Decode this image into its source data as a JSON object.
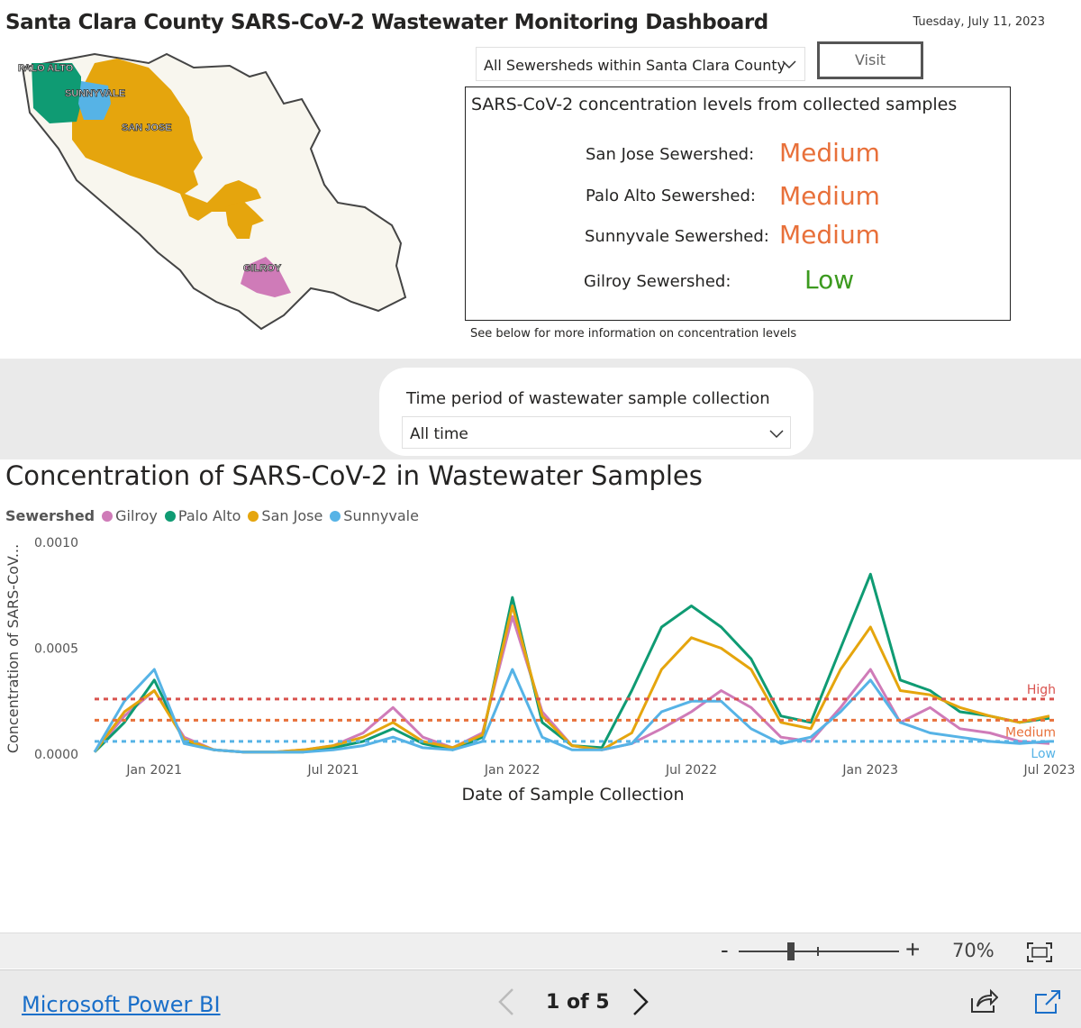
{
  "header": {
    "title": "Santa Clara County SARS-CoV-2 Wastewater Monitoring Dashboard",
    "date": "Tuesday, July 11, 2023"
  },
  "map": {
    "labels": {
      "palo_alto": "PALO ALTO",
      "sunnyvale": "SUNNYVALE",
      "san_jose": "SAN JOSE",
      "gilroy": "GILROY"
    },
    "colors": {
      "palo_alto": "#0f9b73",
      "sunnyvale": "#56b3e6",
      "san_jose": "#e5a50d",
      "gilroy": "#cf7bb8",
      "county": "#f8f6ee"
    }
  },
  "controls": {
    "sewershed_select": "All Sewersheds within Santa Clara County",
    "visit_label": "Visit"
  },
  "levels_panel": {
    "heading": "SARS-CoV-2 concentration levels from collected samples",
    "rows": [
      {
        "name": "San Jose Sewershed:",
        "level": "Medium",
        "color": "#e8703a"
      },
      {
        "name": "Palo Alto Sewershed:",
        "level": "Medium",
        "color": "#e8703a"
      },
      {
        "name": "Sunnyvale Sewershed:",
        "level": "Medium",
        "color": "#e8703a"
      },
      {
        "name": "Gilroy Sewershed:",
        "level": "Low",
        "color": "#3c9a1f"
      }
    ],
    "note": "See below for more information on concentration levels"
  },
  "time_filter": {
    "label": "Time period of wastewater sample collection",
    "value": "All time"
  },
  "chart_data": {
    "type": "line",
    "title": "Concentration of SARS-CoV-2 in Wastewater Samples",
    "legend_title": "Sewershed",
    "xlabel": "Date of Sample Collection",
    "ylabel": "Concentration of SARS-CoV...",
    "x_ticks": [
      "Jan 2021",
      "Jul 2021",
      "Jan 2022",
      "Jul 2022",
      "Jan 2023",
      "Jul 2023"
    ],
    "y_ticks": [
      "0.0000",
      "0.0005",
      "0.0010"
    ],
    "ylim": [
      0,
      0.001
    ],
    "x": [
      "2020-11",
      "2020-12",
      "2021-01",
      "2021-02",
      "2021-03",
      "2021-04",
      "2021-05",
      "2021-06",
      "2021-07",
      "2021-08",
      "2021-09",
      "2021-10",
      "2021-11",
      "2021-12",
      "2022-01",
      "2022-02",
      "2022-03",
      "2022-04",
      "2022-05",
      "2022-06",
      "2022-07",
      "2022-08",
      "2022-09",
      "2022-10",
      "2022-11",
      "2022-12",
      "2023-01",
      "2023-02",
      "2023-03",
      "2023-04",
      "2023-05",
      "2023-06",
      "2023-07"
    ],
    "series": [
      {
        "name": "Gilroy",
        "color": "#cf7bb8",
        "values": [
          1e-05,
          0.00018,
          0.0003,
          8e-05,
          2e-05,
          1e-05,
          1e-05,
          2e-05,
          4e-05,
          0.0001,
          0.00022,
          8e-05,
          3e-05,
          0.0001,
          0.00065,
          0.0002,
          4e-05,
          2e-05,
          5e-05,
          0.00012,
          0.0002,
          0.0003,
          0.00022,
          8e-05,
          6e-05,
          0.00022,
          0.0004,
          0.00015,
          0.00022,
          0.00012,
          0.0001,
          6e-05,
          5e-05
        ]
      },
      {
        "name": "Palo Alto",
        "color": "#0f9b73",
        "values": [
          1e-05,
          0.00015,
          0.00035,
          6e-05,
          2e-05,
          1e-05,
          1e-05,
          1e-05,
          3e-05,
          6e-05,
          0.00012,
          5e-05,
          2e-05,
          8e-05,
          0.00074,
          0.00015,
          4e-05,
          3e-05,
          0.0003,
          0.0006,
          0.0007,
          0.0006,
          0.00045,
          0.00018,
          0.00015,
          0.0005,
          0.00085,
          0.00035,
          0.0003,
          0.0002,
          0.00018,
          0.00015,
          0.00017
        ]
      },
      {
        "name": "San Jose",
        "color": "#e5a50d",
        "values": [
          1e-05,
          0.0002,
          0.0003,
          7e-05,
          2e-05,
          1e-05,
          1e-05,
          2e-05,
          4e-05,
          8e-05,
          0.00015,
          6e-05,
          3e-05,
          9e-05,
          0.0007,
          0.00018,
          4e-05,
          2e-05,
          0.0001,
          0.0004,
          0.00055,
          0.0005,
          0.0004,
          0.00015,
          0.00012,
          0.0004,
          0.0006,
          0.0003,
          0.00028,
          0.00022,
          0.00018,
          0.00015,
          0.00018
        ]
      },
      {
        "name": "Sunnyvale",
        "color": "#56b3e6",
        "values": [
          1e-05,
          0.00025,
          0.0004,
          5e-05,
          2e-05,
          1e-05,
          1e-05,
          1e-05,
          2e-05,
          4e-05,
          8e-05,
          3e-05,
          2e-05,
          6e-05,
          0.0004,
          8e-05,
          2e-05,
          2e-05,
          5e-05,
          0.0002,
          0.00025,
          0.00025,
          0.00012,
          5e-05,
          8e-05,
          0.0002,
          0.00035,
          0.00015,
          0.0001,
          8e-05,
          6e-05,
          5e-05,
          6e-05
        ]
      }
    ],
    "reference_lines": [
      {
        "label": "High",
        "value": 0.00026,
        "color": "#d9534f"
      },
      {
        "label": "Medium",
        "value": 0.00016,
        "color": "#e8703a"
      },
      {
        "label": "Low",
        "value": 6e-05,
        "color": "#56b3e6"
      }
    ]
  },
  "zoom": {
    "minus": "-",
    "plus": "+",
    "value": "70%"
  },
  "footer": {
    "brand": "Microsoft Power BI",
    "page_indicator": "1 of 5"
  }
}
